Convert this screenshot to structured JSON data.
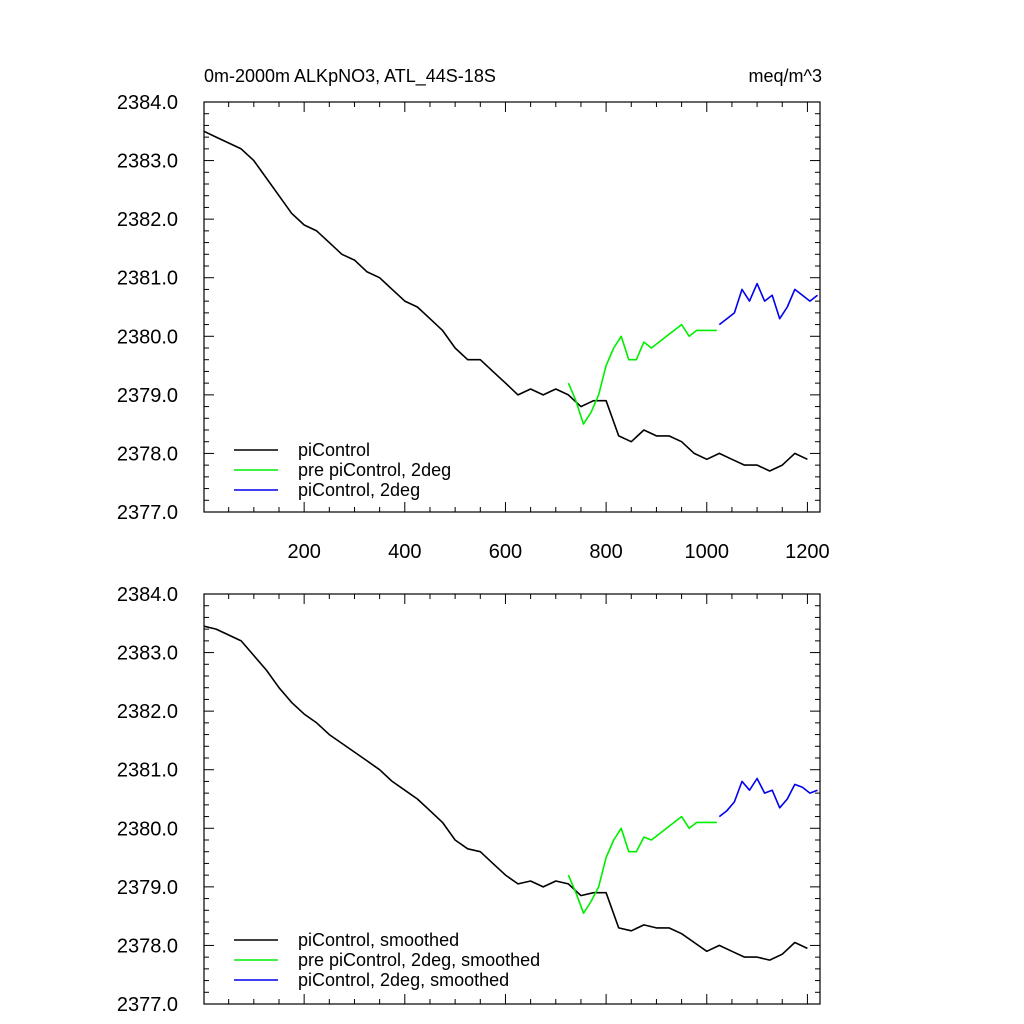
{
  "chart_data": [
    {
      "type": "line",
      "title": "0m-2000m ALKpNO3, ATL_44S-18S",
      "units": "meq/m^3",
      "xlim": [
        1,
        1225
      ],
      "ylim": [
        2377.0,
        2384.0
      ],
      "x_ticks": [
        200,
        400,
        600,
        800,
        1000,
        1200
      ],
      "y_ticks": [
        "2377.0",
        "2378.0",
        "2379.0",
        "2380.0",
        "2381.0",
        "2382.0",
        "2383.0",
        "2384.0"
      ],
      "grid": false,
      "legend_position": "bottom-left",
      "series": [
        {
          "name": "piControl",
          "color": "#000000",
          "x": [
            1,
            25,
            50,
            75,
            100,
            125,
            150,
            175,
            200,
            225,
            250,
            275,
            300,
            325,
            350,
            375,
            400,
            425,
            450,
            475,
            500,
            525,
            550,
            575,
            600,
            625,
            650,
            675,
            700,
            725,
            750,
            775,
            800,
            825,
            850,
            875,
            900,
            925,
            950,
            975,
            1000,
            1025,
            1050,
            1075,
            1100,
            1125,
            1150,
            1175,
            1200
          ],
          "y": [
            2383.5,
            2383.4,
            2383.3,
            2383.2,
            2383.0,
            2382.7,
            2382.4,
            2382.1,
            2381.9,
            2381.8,
            2381.6,
            2381.4,
            2381.3,
            2381.1,
            2381.0,
            2380.8,
            2380.6,
            2380.5,
            2380.3,
            2380.1,
            2379.8,
            2379.6,
            2379.6,
            2379.4,
            2379.2,
            2379.0,
            2379.1,
            2379.0,
            2379.1,
            2379.0,
            2378.8,
            2378.9,
            2378.9,
            2378.3,
            2378.2,
            2378.4,
            2378.3,
            2378.3,
            2378.2,
            2378.0,
            2377.9,
            2378.0,
            2377.9,
            2377.8,
            2377.8,
            2377.7,
            2377.8,
            2378.0,
            2377.9
          ]
        },
        {
          "name": "pre piControl, 2deg",
          "color": "#00ee00",
          "x": [
            725,
            740,
            755,
            770,
            785,
            800,
            815,
            830,
            845,
            860,
            875,
            890,
            905,
            920,
            935,
            950,
            965,
            980,
            995,
            1010,
            1020
          ],
          "y": [
            2379.2,
            2378.9,
            2378.5,
            2378.7,
            2379.0,
            2379.5,
            2379.8,
            2380.0,
            2379.6,
            2379.6,
            2379.9,
            2379.8,
            2379.9,
            2380.0,
            2380.1,
            2380.2,
            2380.0,
            2380.1,
            2380.1,
            2380.1,
            2380.1
          ]
        },
        {
          "name": "piControl, 2deg",
          "color": "#0000ee",
          "x": [
            1025,
            1040,
            1055,
            1070,
            1085,
            1100,
            1115,
            1130,
            1145,
            1160,
            1175,
            1190,
            1205,
            1220
          ],
          "y": [
            2380.2,
            2380.3,
            2380.4,
            2380.8,
            2380.6,
            2380.9,
            2380.6,
            2380.7,
            2380.3,
            2380.5,
            2380.8,
            2380.7,
            2380.6,
            2380.7
          ]
        }
      ]
    },
    {
      "type": "line",
      "title": "",
      "xlim": [
        1,
        1225
      ],
      "ylim": [
        2377.0,
        2384.0
      ],
      "y_ticks": [
        "2377.0",
        "2378.0",
        "2379.0",
        "2380.0",
        "2381.0",
        "2382.0",
        "2383.0",
        "2384.0"
      ],
      "grid": false,
      "legend_position": "bottom-left",
      "series": [
        {
          "name": "piControl, smoothed",
          "color": "#000000",
          "x": [
            1,
            25,
            50,
            75,
            100,
            125,
            150,
            175,
            200,
            225,
            250,
            275,
            300,
            325,
            350,
            375,
            400,
            425,
            450,
            475,
            500,
            525,
            550,
            575,
            600,
            625,
            650,
            675,
            700,
            725,
            750,
            775,
            800,
            825,
            850,
            875,
            900,
            925,
            950,
            975,
            1000,
            1025,
            1050,
            1075,
            1100,
            1125,
            1150,
            1175,
            1200
          ],
          "y": [
            2383.45,
            2383.4,
            2383.3,
            2383.2,
            2382.95,
            2382.7,
            2382.4,
            2382.15,
            2381.95,
            2381.8,
            2381.6,
            2381.45,
            2381.3,
            2381.15,
            2381.0,
            2380.8,
            2380.65,
            2380.5,
            2380.3,
            2380.1,
            2379.8,
            2379.65,
            2379.6,
            2379.4,
            2379.2,
            2379.05,
            2379.1,
            2379.0,
            2379.1,
            2379.05,
            2378.85,
            2378.9,
            2378.9,
            2378.3,
            2378.25,
            2378.35,
            2378.3,
            2378.3,
            2378.2,
            2378.05,
            2377.9,
            2378.0,
            2377.9,
            2377.8,
            2377.8,
            2377.75,
            2377.85,
            2378.05,
            2377.95
          ]
        },
        {
          "name": "pre piControl, 2deg, smoothed",
          "color": "#00ee00",
          "x": [
            725,
            740,
            755,
            770,
            785,
            800,
            815,
            830,
            845,
            860,
            875,
            890,
            905,
            920,
            935,
            950,
            965,
            980,
            995,
            1010,
            1020
          ],
          "y": [
            2379.2,
            2378.9,
            2378.55,
            2378.75,
            2379.0,
            2379.5,
            2379.8,
            2380.0,
            2379.6,
            2379.6,
            2379.85,
            2379.8,
            2379.9,
            2380.0,
            2380.1,
            2380.2,
            2380.0,
            2380.1,
            2380.1,
            2380.1,
            2380.1
          ]
        },
        {
          "name": "piControl, 2deg, smoothed",
          "color": "#0000ee",
          "x": [
            1025,
            1040,
            1055,
            1070,
            1085,
            1100,
            1115,
            1130,
            1145,
            1160,
            1175,
            1190,
            1205,
            1220
          ],
          "y": [
            2380.2,
            2380.3,
            2380.45,
            2380.8,
            2380.65,
            2380.85,
            2380.6,
            2380.65,
            2380.35,
            2380.5,
            2380.75,
            2380.7,
            2380.6,
            2380.65
          ]
        }
      ]
    }
  ]
}
